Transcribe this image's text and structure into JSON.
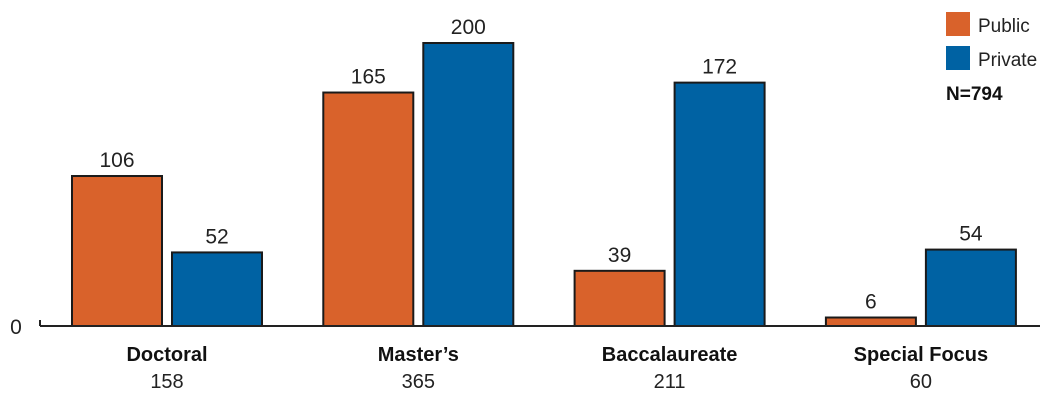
{
  "chart_data": {
    "type": "bar",
    "categories": [
      "Doctoral",
      "Master’s",
      "Baccalaureate",
      "Special Focus"
    ],
    "category_totals": [
      "158",
      "365",
      "211",
      "60"
    ],
    "series": [
      {
        "name": "Public",
        "color": "#D9622B",
        "values": [
          106,
          165,
          39,
          6
        ]
      },
      {
        "name": "Private",
        "color": "#0062A3",
        "values": [
          52,
          200,
          172,
          54
        ]
      }
    ],
    "ylim": [
      0,
      200
    ],
    "y_tick_labels": [
      "0"
    ],
    "legend_position": "top-right",
    "note": "N=794",
    "grid": false
  }
}
